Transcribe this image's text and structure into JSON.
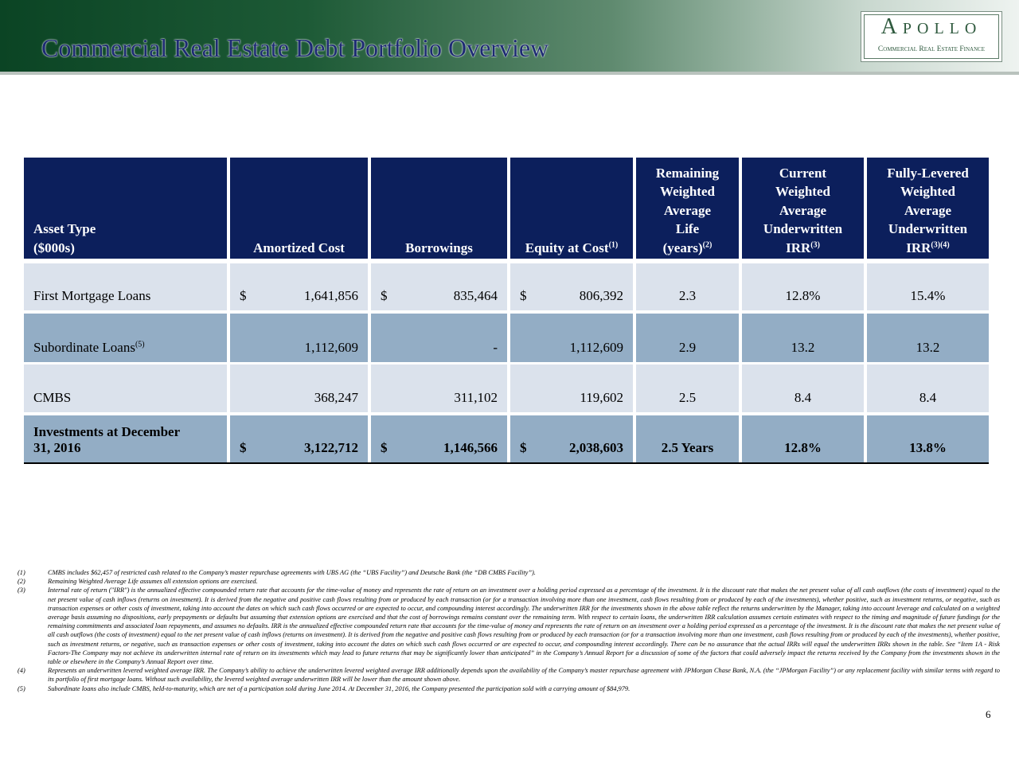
{
  "header": {
    "title": "Commercial Real Estate Debt Portfolio Overview",
    "logo": {
      "name": "Apollo",
      "tagline": "Commercial Real Estate Finance"
    }
  },
  "table": {
    "columns": [
      {
        "lines": [
          "Asset Type",
          "($000s)"
        ]
      },
      {
        "lines": [
          "Amortized Cost"
        ]
      },
      {
        "lines": [
          "Borrowings"
        ]
      },
      {
        "lines": [
          "Equity at Cost"
        ],
        "note": "(1)"
      },
      {
        "lines": [
          "Remaining",
          "Weighted",
          "Average",
          "Life",
          "(years)"
        ],
        "note": "(2)"
      },
      {
        "lines": [
          "Current",
          "Weighted",
          "Average",
          "Underwritten",
          "IRR"
        ],
        "note": "(3)"
      },
      {
        "lines": [
          "Fully-Levered",
          "Weighted",
          "Average",
          "Underwritten",
          "IRR"
        ],
        "note": "(3)(4)"
      }
    ],
    "rows": [
      {
        "label": "First Mortgage Loans",
        "cells": [
          {
            "sign": "$",
            "value": "1,641,856"
          },
          {
            "sign": "$",
            "value": "835,464"
          },
          {
            "sign": "$",
            "value": "806,392"
          },
          "2.3",
          "12.8%",
          "15.4%"
        ]
      },
      {
        "label": "Subordinate Loans",
        "note": "(5)",
        "cells": [
          {
            "value": "1,112,609"
          },
          {
            "value": "-"
          },
          {
            "value": "1,112,609"
          },
          "2.9",
          "13.2",
          "13.2"
        ]
      },
      {
        "label": "CMBS",
        "cells": [
          {
            "value": "368,247"
          },
          {
            "value": "311,102"
          },
          {
            "value": "119,602"
          },
          "2.5",
          "8.4",
          "8.4"
        ]
      }
    ],
    "total_row": {
      "label": "Investments at December 31, 2016",
      "cells": [
        {
          "sign": "$",
          "value": "3,122,712"
        },
        {
          "sign": "$",
          "value": "1,146,566"
        },
        {
          "sign": "$",
          "value": "2,038,603"
        },
        "2.5 Years",
        "12.8%",
        "13.8%"
      ]
    }
  },
  "footnotes": [
    {
      "number": "(1)",
      "text": "CMBS includes $62,457 of restricted cash related to the Company’s master repurchase agreements with UBS AG (the “UBS Facility”) and Deutsche Bank (the “DB CMBS Facility”)."
    },
    {
      "number": "(2)",
      "text": "Remaining Weighted Average Life assumes all extension options are exercised."
    },
    {
      "number": "(3)",
      "text": "Internal rate of return (\"IRR\") is the annualized effective compounded return rate that accounts for the time-value of money and represents the rate of return on an investment over a holding period expressed as a percentage of the investment. It is the discount rate that makes the net present value of all cash outflows (the costs of investment) equal to the net present value of cash inflows (returns on investment). It is derived from the negative and positive cash flows resulting from or produced by each transaction (or for a transaction involving more than one investment, cash flows resulting from or produced by each of the investments), whether positive, such as investment returns, or negative, such as transaction expenses or other costs of investment, taking into account the dates on which such cash flows occurred or are expected to occur, and compounding interest accordingly. The underwritten IRR for the investments shown in the above table reflect the returns underwritten by the Manager, taking into account leverage and calculated on a weighted average basis assuming no dispositions, early prepayments or defaults but assuming that extension options are exercised and that the cost of borrowings remains constant over the remaining term. With respect to certain loans, the underwritten IRR calculation assumes certain estimates with respect to the timing and magnitude of future fundings for the remaining commitments and associated loan repayments, and assumes no defaults. IRR is the annualized effective compounded return rate that accounts for the time-value of money and represents the rate of return on an investment over a holding period expressed as a percentage of the investment. It is the discount rate that makes the net present value of all cash outflows (the costs of investment) equal to the net present value of cash inflows (returns on investment). It is derived from the negative and positive cash flows resulting from or produced by each transaction (or for a transaction involving more than one investment, cash flows resulting from or produced by each of the investments), whether positive, such as investment returns, or negative, such as transaction expenses or other costs of investment, taking into account the dates on which such cash flows occurred or are expected to occur, and compounding interest accordingly. There can be no assurance that the actual IRRs will equal the underwritten IRRs shown in the table. See “Item 1A - Risk Factors-The Company may not achieve its underwritten internal rate of return on its investments which may lead to future returns that may be significantly lower than anticipated” in the Company’s Annual Report for a discussion of some of the factors that could adversely impact the returns received by the Company from the investments shown in the table or elsewhere in the Company’s Annual Report over time."
    },
    {
      "number": "(4)",
      "text": "Represents an underwritten levered weighted average IRR. The Company’s ability to achieve the underwritten levered weighted average IRR additionally depends upon the availability of the Company’s master repurchase agreement with JPMorgan Chase Bank, N.A. (the “JPMorgan Facility”) or any replacement facility with similar terms with regard to its portfolio of first mortgage loans. Without such availability, the levered weighted average underwritten IRR will be lower than the amount shown above."
    },
    {
      "number": "(5)",
      "text": "Subordinate loans also include CMBS, held-to-maturity, which are net of a participation sold during June 2014. At December 31, 2016, the Company presented the participation sold with a carrying amount of $84,979."
    }
  ],
  "page_number": "6"
}
